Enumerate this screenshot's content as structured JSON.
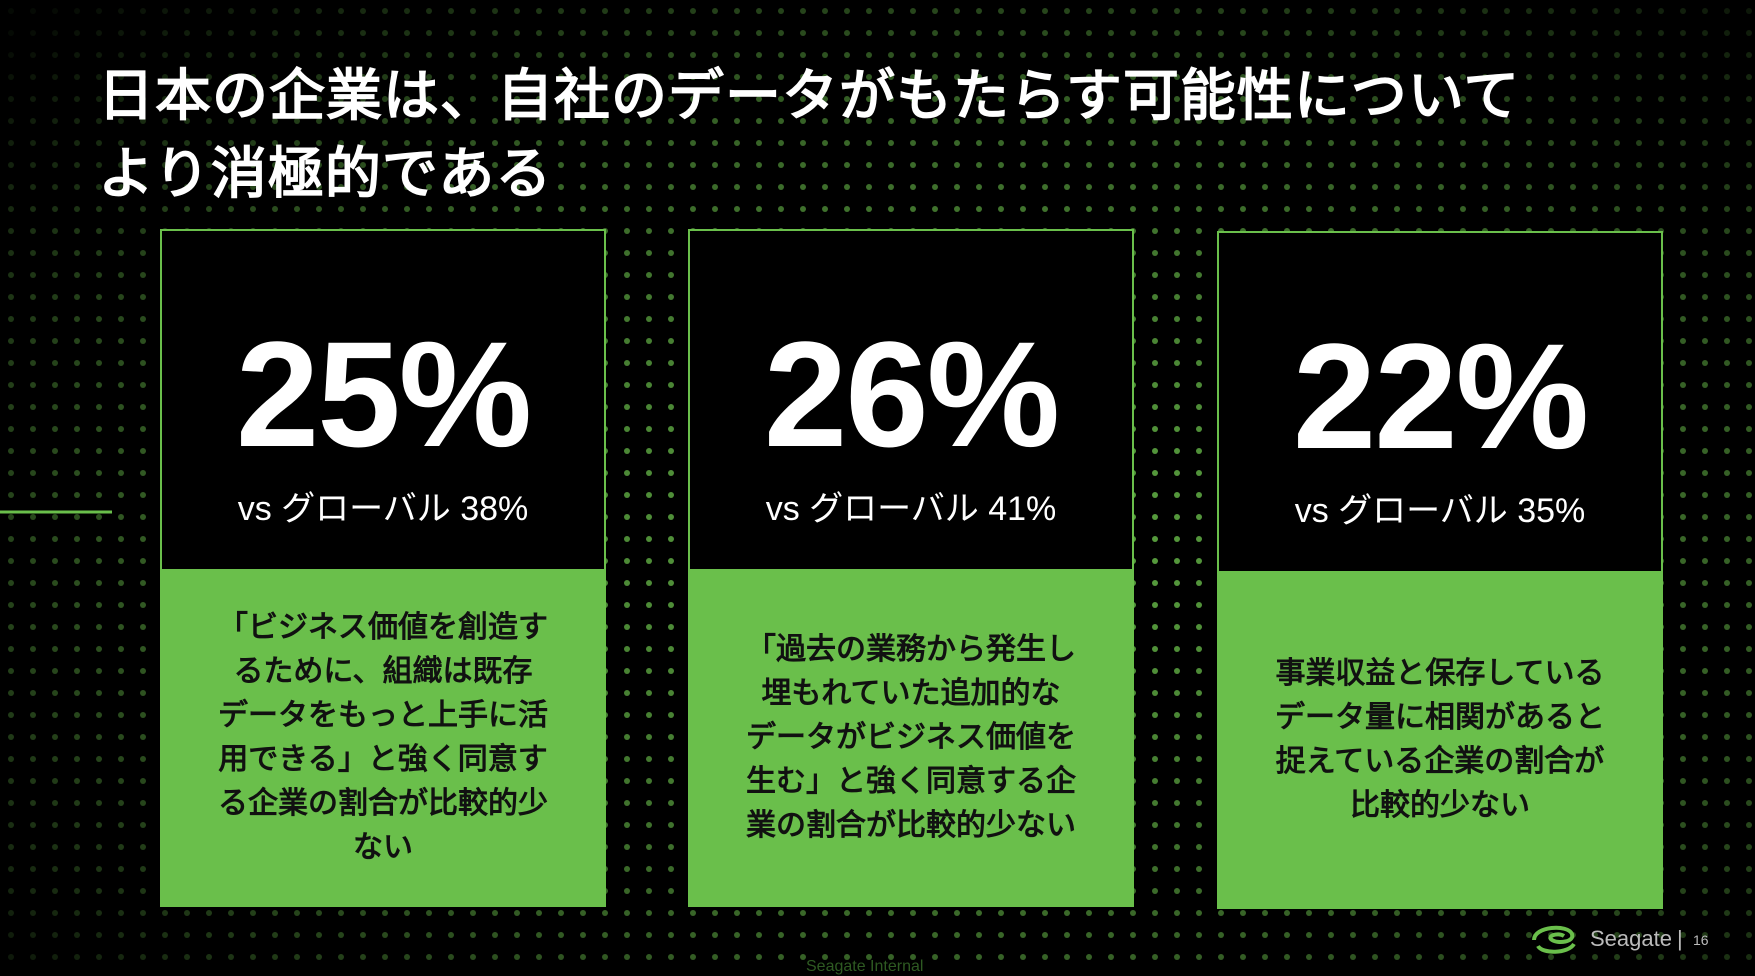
{
  "title": {
    "lines": [
      "日本の企業は、自社のデータがもたらす可能性について",
      "より消極的である"
    ]
  },
  "cards": [
    {
      "stat": "25%",
      "comparison": "vs グローバル 38%",
      "description": [
        "「ビジネス価値を創造す",
        "るために、組織は既存",
        "データをもっと上手に活",
        "用できる」と強く同意す",
        "る企業の割合が比較的少",
        "ない"
      ]
    },
    {
      "stat": "26%",
      "comparison": "vs グローバル 41%",
      "description": [
        "「過去の業務から発生し",
        "埋もれていた追加的な",
        "データがビジネス価値を",
        "生む」と強く同意する企",
        "業の割合が比較的少ない"
      ]
    },
    {
      "stat": "22%",
      "comparison": "vs グローバル 35%",
      "description": [
        "事業収益と保存している",
        "データ量に相関があると",
        "捉えている企業の割合が",
        "比較的少ない"
      ]
    }
  ],
  "footer": {
    "brand": "Seagate",
    "separator": "|",
    "page": "16",
    "classification": "Seagate Internal"
  }
}
